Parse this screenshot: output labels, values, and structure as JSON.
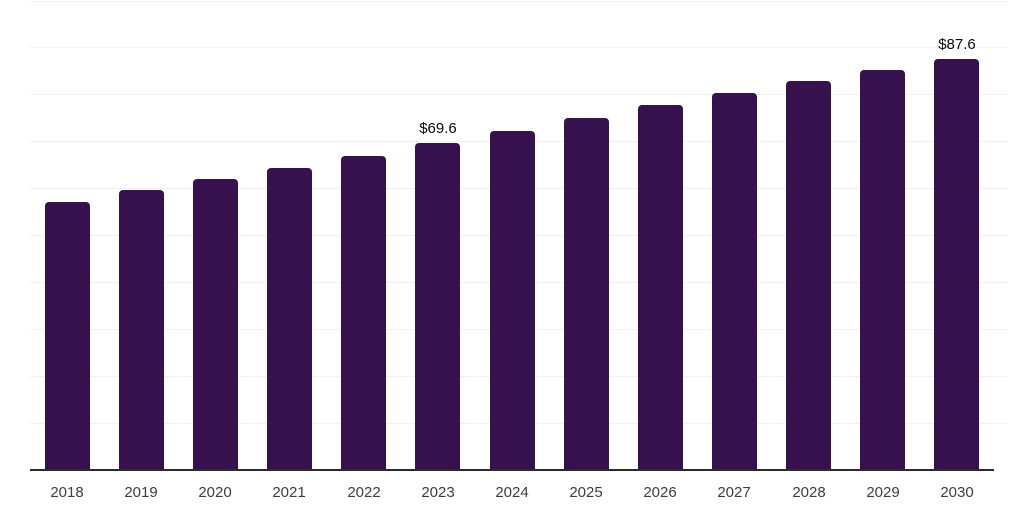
{
  "chart_data": {
    "type": "bar",
    "title": "",
    "xlabel": "",
    "ylabel": "",
    "categories": [
      "2018",
      "2019",
      "2020",
      "2021",
      "2022",
      "2023",
      "2024",
      "2025",
      "2026",
      "2027",
      "2028",
      "2029",
      "2030"
    ],
    "values": [
      57.1,
      59.7,
      62.0,
      64.4,
      66.9,
      69.6,
      72.2,
      75.0,
      77.8,
      80.3,
      82.9,
      85.2,
      87.6
    ],
    "value_labels": [
      "",
      "",
      "",
      "",
      "",
      "$69.6",
      "",
      "",
      "",
      "",
      "",
      "",
      "$87.6"
    ],
    "unit_prefix": "$",
    "ylim": [
      0,
      100
    ],
    "gridline_step": 10,
    "grid": "horizontal-only",
    "legend": "none",
    "colors": {
      "bar": "#37114e",
      "axis_line": "#2b2b2b",
      "gridline": "#f1f1f1",
      "tick_label": "#3d3d3d",
      "value_label": "#0a0a0a",
      "background": "#ffffff"
    }
  }
}
